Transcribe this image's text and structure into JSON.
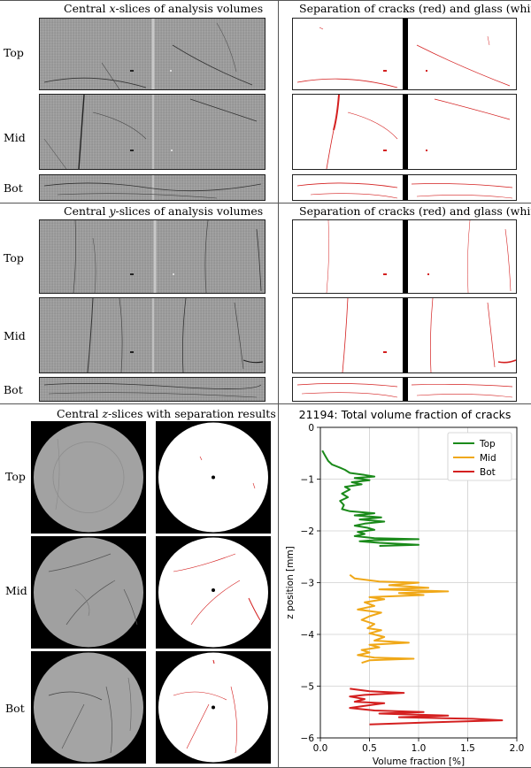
{
  "section_x": {
    "left_title_pre": "Central ",
    "left_title_var": "x",
    "left_title_post": "-slices of analysis volumes",
    "right_title": "Separation of cracks (red) and glass (white)"
  },
  "section_y": {
    "left_title_pre": "Central ",
    "left_title_var": "y",
    "left_title_post": "-slices of analysis volumes",
    "right_title": "Separation of cracks (red) and glass (white)"
  },
  "section_z": {
    "title_pre": "Central ",
    "title_var": "z",
    "title_post": "-slices with separation results"
  },
  "row_labels": [
    "Top",
    "Mid",
    "Bot"
  ],
  "colors": {
    "top": "#1a8a1a",
    "mid": "#f0a818",
    "bot": "#d42020",
    "crack": "#d42020"
  },
  "chart_data": {
    "type": "line",
    "title": "21194: Total volume fraction of cracks",
    "xlabel": "Volume fraction [%]",
    "ylabel": "z position [mm]",
    "xlim": [
      0.0,
      2.0
    ],
    "ylim": [
      -6,
      0
    ],
    "xticks": [
      "0.0",
      "0.5",
      "1.0",
      "1.5",
      "2.0"
    ],
    "yticks": [
      "0",
      "−1",
      "−2",
      "−3",
      "−4",
      "−5",
      "−6"
    ],
    "grid": true,
    "legend": "top-right",
    "series": [
      {
        "name": "Top",
        "color": "#1a8a1a",
        "points": [
          [
            0.02,
            -0.45
          ],
          [
            0.05,
            -0.55
          ],
          [
            0.08,
            -0.65
          ],
          [
            0.12,
            -0.72
          ],
          [
            0.2,
            -0.78
          ],
          [
            0.25,
            -0.82
          ],
          [
            0.3,
            -0.88
          ],
          [
            0.45,
            -0.92
          ],
          [
            0.55,
            -0.95
          ],
          [
            0.35,
            -0.98
          ],
          [
            0.5,
            -1.02
          ],
          [
            0.32,
            -1.06
          ],
          [
            0.42,
            -1.1
          ],
          [
            0.25,
            -1.15
          ],
          [
            0.3,
            -1.2
          ],
          [
            0.22,
            -1.28
          ],
          [
            0.28,
            -1.35
          ],
          [
            0.2,
            -1.42
          ],
          [
            0.24,
            -1.5
          ],
          [
            0.22,
            -1.58
          ],
          [
            0.3,
            -1.62
          ],
          [
            0.55,
            -1.66
          ],
          [
            0.35,
            -1.7
          ],
          [
            0.62,
            -1.74
          ],
          [
            0.4,
            -1.78
          ],
          [
            0.65,
            -1.82
          ],
          [
            0.45,
            -1.86
          ],
          [
            0.35,
            -1.9
          ],
          [
            0.48,
            -1.94
          ],
          [
            0.55,
            -1.98
          ],
          [
            0.38,
            -2.02
          ],
          [
            0.45,
            -2.06
          ],
          [
            0.35,
            -2.1
          ],
          [
            0.55,
            -2.14
          ],
          [
            1.0,
            -2.16
          ],
          [
            0.55,
            -2.18
          ],
          [
            0.4,
            -2.2
          ],
          [
            0.6,
            -2.23
          ],
          [
            1.0,
            -2.27
          ],
          [
            0.6,
            -2.29
          ]
        ]
      },
      {
        "name": "Mid",
        "color": "#f0a818",
        "points": [
          [
            0.3,
            -2.85
          ],
          [
            0.35,
            -2.92
          ],
          [
            0.6,
            -2.98
          ],
          [
            1.0,
            -3.0
          ],
          [
            0.7,
            -3.05
          ],
          [
            1.1,
            -3.1
          ],
          [
            0.6,
            -3.13
          ],
          [
            1.3,
            -3.17
          ],
          [
            0.8,
            -3.2
          ],
          [
            1.05,
            -3.24
          ],
          [
            0.5,
            -3.28
          ],
          [
            0.65,
            -3.32
          ],
          [
            0.45,
            -3.38
          ],
          [
            0.55,
            -3.45
          ],
          [
            0.38,
            -3.52
          ],
          [
            0.62,
            -3.58
          ],
          [
            0.5,
            -3.65
          ],
          [
            0.42,
            -3.72
          ],
          [
            0.55,
            -3.8
          ],
          [
            0.48,
            -3.88
          ],
          [
            0.62,
            -3.92
          ],
          [
            0.5,
            -3.98
          ],
          [
            0.65,
            -4.05
          ],
          [
            0.55,
            -4.12
          ],
          [
            0.9,
            -4.16
          ],
          [
            0.5,
            -4.2
          ],
          [
            0.6,
            -4.25
          ],
          [
            0.42,
            -4.3
          ],
          [
            0.5,
            -4.35
          ],
          [
            0.38,
            -4.4
          ],
          [
            0.55,
            -4.45
          ],
          [
            0.95,
            -4.47
          ],
          [
            0.5,
            -4.5
          ],
          [
            0.42,
            -4.55
          ]
        ]
      },
      {
        "name": "Bot",
        "color": "#d42020",
        "points": [
          [
            0.3,
            -5.05
          ],
          [
            0.5,
            -5.1
          ],
          [
            0.85,
            -5.13
          ],
          [
            0.45,
            -5.17
          ],
          [
            0.3,
            -5.2
          ],
          [
            0.45,
            -5.25
          ],
          [
            0.35,
            -5.3
          ],
          [
            0.65,
            -5.33
          ],
          [
            0.45,
            -5.38
          ],
          [
            0.3,
            -5.42
          ],
          [
            0.55,
            -5.47
          ],
          [
            1.05,
            -5.5
          ],
          [
            0.6,
            -5.53
          ],
          [
            1.3,
            -5.57
          ],
          [
            0.8,
            -5.6
          ],
          [
            1.55,
            -5.63
          ],
          [
            1.85,
            -5.66
          ],
          [
            1.1,
            -5.7
          ],
          [
            0.5,
            -5.74
          ]
        ]
      }
    ]
  }
}
